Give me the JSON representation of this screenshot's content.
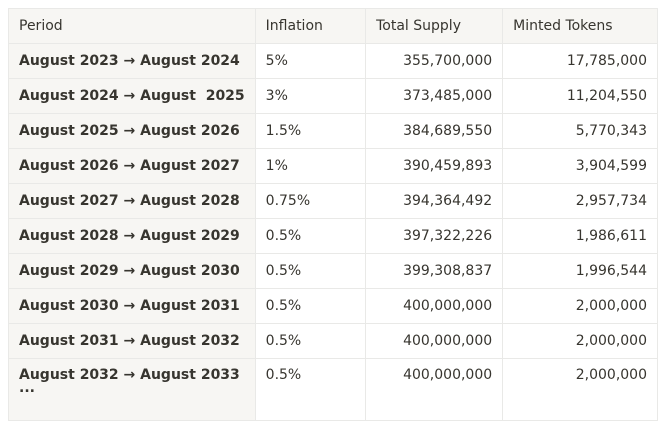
{
  "table": {
    "headers": [
      "Period",
      "Inflation",
      "Total Supply",
      "Minted Tokens"
    ],
    "rows": [
      {
        "period": "August 2023 → August 2024",
        "inflation": "5%",
        "supply": "355,700,000",
        "minted": "17,785,000"
      },
      {
        "period": "August 2024 → August  2025",
        "inflation": "3%",
        "supply": "373,485,000",
        "minted": "11,204,550"
      },
      {
        "period": "August 2025 → August 2026",
        "inflation": "1.5%",
        "supply": "384,689,550",
        "minted": "5,770,343"
      },
      {
        "period": "August 2026 → August 2027",
        "inflation": "1%",
        "supply": "390,459,893",
        "minted": "3,904,599"
      },
      {
        "period": "August 2027 → August 2028",
        "inflation": "0.75%",
        "supply": "394,364,492",
        "minted": "2,957,734"
      },
      {
        "period": "August 2028 → August 2029",
        "inflation": "0.5%",
        "supply": "397,322,226",
        "minted": "1,986,611"
      },
      {
        "period": "August 2029 → August 2030",
        "inflation": "0.5%",
        "supply": "399,308,837",
        "minted": "1,996,544"
      },
      {
        "period": "August 2030 → August 2031",
        "inflation": "0.5%",
        "supply": "400,000,000",
        "minted": "2,000,000"
      },
      {
        "period": "August 2031 → August 2032",
        "inflation": "0.5%",
        "supply": "400,000,000",
        "minted": "2,000,000"
      },
      {
        "period": "August 2032 → August 2033",
        "inflation": "0.5%",
        "supply": "400,000,000",
        "minted": "2,000,000"
      }
    ],
    "continuation": "..."
  }
}
